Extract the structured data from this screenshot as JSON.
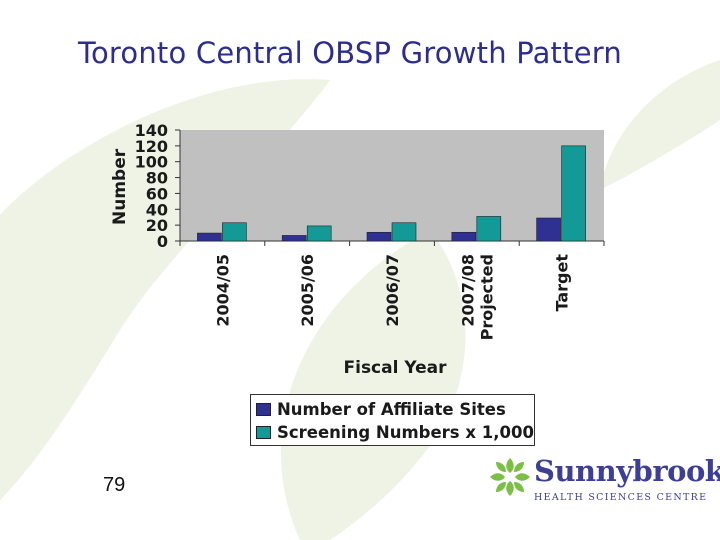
{
  "slide": {
    "title": "Toronto Central OBSP Growth Pattern",
    "page_number": "79"
  },
  "logo": {
    "name": "Sunnybrook",
    "subtitle": "HEALTH SCIENCES CENTRE"
  },
  "colors": {
    "title": "#2b2e8f",
    "plot_bg": "#c0c0c0",
    "affiliate_sites": "#2e3192",
    "screening_numbers": "#139a96",
    "leaf_bg": "#eef3e6",
    "logo_green": "#7bbf44",
    "logo_text": "#3d3f97"
  },
  "chart_data": {
    "type": "bar",
    "title": "",
    "xlabel": "Fiscal Year",
    "ylabel": "Number",
    "ylim": [
      0,
      140
    ],
    "yticks": [
      0,
      20,
      40,
      60,
      80,
      100,
      120,
      140
    ],
    "categories": [
      [
        "2004/05"
      ],
      [
        "2005/06"
      ],
      [
        "2006/07"
      ],
      [
        "2007/08",
        "Projected"
      ],
      [
        "Target"
      ]
    ],
    "series": [
      {
        "name": "Number of Affiliate Sites",
        "values": [
          10,
          7,
          11,
          11,
          29
        ]
      },
      {
        "name": "Screening Numbers x 1,000",
        "values": [
          23,
          19,
          23,
          31,
          120
        ]
      }
    ],
    "grid": false,
    "legend_position": "bottom"
  }
}
